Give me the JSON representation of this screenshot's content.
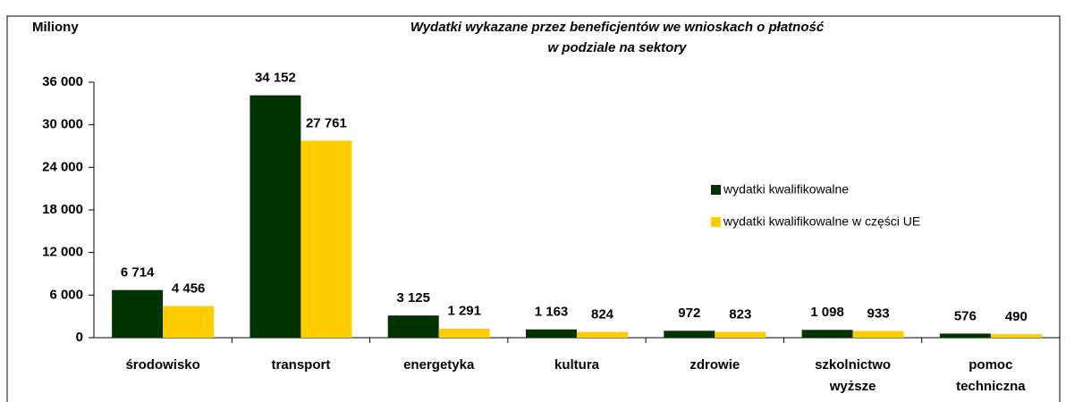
{
  "chart_data": {
    "type": "bar",
    "title": "Wydatki wykazane przez beneficjentów we wnioskach o płatność",
    "subtitle": "w podziale na sektory",
    "y_label": "Miliony",
    "categories": [
      "środowisko",
      "transport",
      "energetyka",
      "kultura",
      "zdrowie",
      "szkolnictwo wyższe",
      "pomoc techniczna"
    ],
    "series": [
      {
        "name": "wydatki kwalifikowalne",
        "color": "#003300",
        "values": [
          6714,
          34152,
          3125,
          1163,
          972,
          1098,
          576
        ],
        "value_labels": [
          "6 714",
          "34 152",
          "3 125",
          "1 163",
          "972",
          "1 098",
          "576"
        ]
      },
      {
        "name": "wydatki kwalifikowalne w części UE",
        "color": "#ffcc00",
        "values": [
          4456,
          27761,
          1291,
          824,
          823,
          933,
          490
        ],
        "value_labels": [
          "4 456",
          "27 761",
          "1 291",
          "824",
          "823",
          "933",
          "490"
        ]
      }
    ],
    "ylim": [
      0,
      36000
    ],
    "yticks": [
      0,
      {
        "value": 6000,
        "label": "6 000"
      },
      {
        "value": 12000,
        "label": "12 000"
      },
      {
        "value": 18000,
        "label": "18 000"
      },
      {
        "value": 24000,
        "label": "24 000"
      },
      {
        "value": 30000,
        "label": "30 000"
      },
      {
        "value": 36000,
        "label": "36 000"
      }
    ],
    "grid": false,
    "legend": "right"
  }
}
